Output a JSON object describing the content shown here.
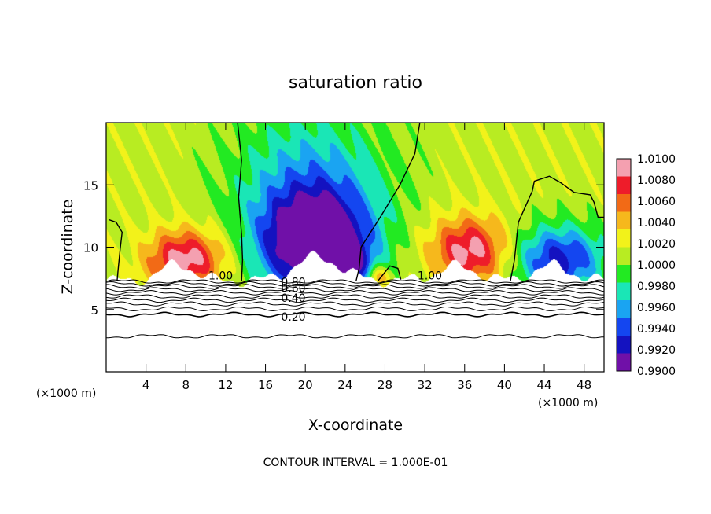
{
  "chart_data": {
    "type": "heatmap",
    "title": "saturation ratio",
    "xlabel": "X-coordinate",
    "ylabel": "Z-coordinate",
    "x_unit_left": "(×1000 m)",
    "x_unit_right": "(×1000 m)",
    "footer": "CONTOUR INTERVAL = 1.000E-01",
    "xlim": [
      0,
      50
    ],
    "ylim": [
      0,
      20
    ],
    "x_ticks": [
      4,
      8,
      12,
      16,
      20,
      24,
      28,
      32,
      36,
      40,
      44,
      48
    ],
    "y_ticks": [
      5,
      10,
      15
    ],
    "colorbar": {
      "min": 0.99,
      "max": 1.01,
      "labels": [
        "1.0100",
        "1.0080",
        "1.0060",
        "1.0040",
        "1.0020",
        "1.0000",
        "0.9980",
        "0.9960",
        "0.9940",
        "0.9920",
        "0.9900"
      ],
      "colors": [
        "#f4a0b0",
        "#ee1c2a",
        "#f26a16",
        "#f6b81c",
        "#f2f21a",
        "#b8ec22",
        "#22ea22",
        "#1ae6b6",
        "#1aa4f2",
        "#1446f0",
        "#1412c0",
        "#7010a8"
      ]
    },
    "contour_labels": [
      {
        "text": "1.00",
        "x": 11.5,
        "y": 7.4
      },
      {
        "text": "1.00",
        "x": 32.5,
        "y": 7.4
      },
      {
        "text": "0.80",
        "x": 18.8,
        "y": 6.9
      },
      {
        "text": "0.60",
        "x": 18.8,
        "y": 6.4
      },
      {
        "text": "0.40",
        "x": 18.8,
        "y": 5.6
      },
      {
        "text": "0.20",
        "x": 18.8,
        "y": 4.1
      }
    ]
  }
}
